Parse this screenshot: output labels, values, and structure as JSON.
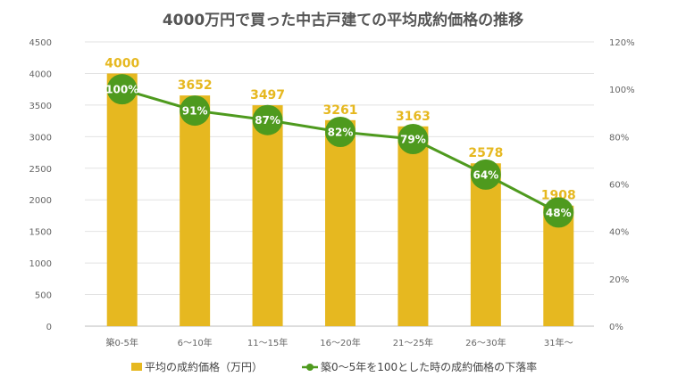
{
  "chart_data": {
    "type": "bar+line",
    "title": "4000万円で買った中古戸建ての平均成約価格の推移",
    "categories": [
      "築0-5年",
      "6～10年",
      "11～15年",
      "16～20年",
      "21～25年",
      "26～30年",
      "31年～"
    ],
    "series": [
      {
        "name": "平均の成約価格（万円）",
        "type": "bar",
        "axis": "left",
        "values": [
          4000,
          3652,
          3497,
          3261,
          3163,
          2578,
          1908
        ],
        "color": "#E6B820"
      },
      {
        "name": "築0～5年を100とした時の成約価格の下落率",
        "type": "line",
        "axis": "right",
        "values": [
          100,
          91,
          87,
          82,
          79,
          64,
          48
        ],
        "color": "#4E9A1E"
      }
    ],
    "y_left": {
      "min": 0,
      "max": 4500,
      "ticks": [
        0,
        500,
        1000,
        1500,
        2000,
        2500,
        3000,
        3500,
        4000,
        4500
      ]
    },
    "y_right": {
      "min": 0,
      "max": 120,
      "ticks": [
        0,
        20,
        40,
        60,
        80,
        100,
        120
      ],
      "format": "%"
    },
    "grid": true,
    "legend": "bottom"
  }
}
